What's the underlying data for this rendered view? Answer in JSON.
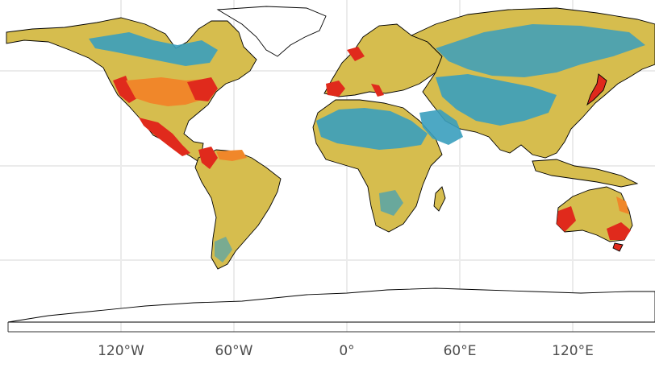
{
  "map": {
    "projection": "equirectangular",
    "background": "#ffffff",
    "grid_color": "#ebebeb",
    "border_color": "#000000",
    "legend_colors": [
      "#d9bf4f",
      "#3a9fbe",
      "#f5a623",
      "#ee6a1f",
      "#e02a1c"
    ],
    "x_axis": {
      "ticks": [
        "120°W",
        "60°W",
        "0°",
        "60°E",
        "120°E"
      ]
    }
  }
}
